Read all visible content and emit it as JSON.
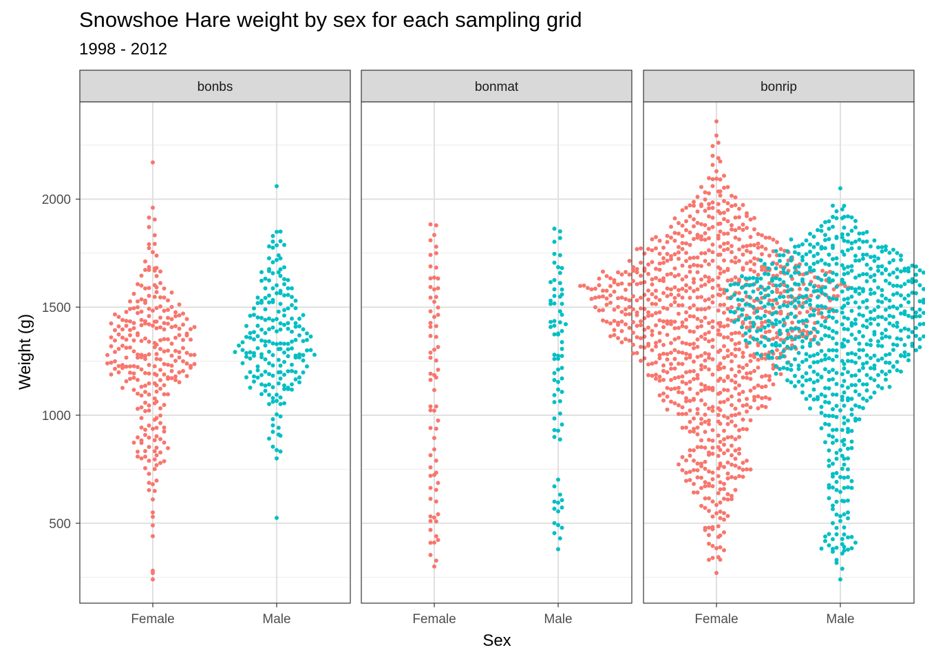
{
  "chart_data": {
    "type": "scatter",
    "subtype": "beeswarm",
    "title": "Snowshoe Hare weight by sex for each sampling grid",
    "subtitle": "1998 - 2012",
    "xlabel": "Sex",
    "ylabel": "Weight (g)",
    "ylim": [
      130,
      2450
    ],
    "y_ticks": [
      500,
      1000,
      1500,
      2000
    ],
    "y_tick_labels": [
      "500",
      "1000",
      "1500",
      "2000"
    ],
    "categories": [
      "Female",
      "Male"
    ],
    "grid": true,
    "legend": "none",
    "colors": {
      "Female": "#F8766D",
      "Male": "#00BFC4"
    },
    "panels": [
      {
        "name": "bonbs",
        "series": [
          {
            "category": "Female",
            "min": 240,
            "max": 2170,
            "outliers": [
              2170,
              280,
              270,
              240,
              440,
              490,
              530,
              550,
              610
            ],
            "bins": [
              [
                650,
                2
              ],
              [
                700,
                3
              ],
              [
                750,
                4
              ],
              [
                800,
                8
              ],
              [
                850,
                10
              ],
              [
                900,
                8
              ],
              [
                950,
                7
              ],
              [
                1000,
                6
              ],
              [
                1050,
                8
              ],
              [
                1100,
                10
              ],
              [
                1150,
                16
              ],
              [
                1200,
                22
              ],
              [
                1250,
                24
              ],
              [
                1300,
                24
              ],
              [
                1350,
                22
              ],
              [
                1400,
                23
              ],
              [
                1450,
                20
              ],
              [
                1500,
                15
              ],
              [
                1550,
                12
              ],
              [
                1600,
                8
              ],
              [
                1650,
                6
              ],
              [
                1700,
                4
              ],
              [
                1750,
                3
              ],
              [
                1800,
                2
              ],
              [
                1850,
                2
              ],
              [
                1900,
                2
              ],
              [
                1950,
                1
              ]
            ]
          },
          {
            "category": "Male",
            "min": 525,
            "max": 2060,
            "outliers": [
              525,
              2060,
              800
            ],
            "bins": [
              [
                850,
                3
              ],
              [
                900,
                4
              ],
              [
                950,
                2
              ],
              [
                1000,
                3
              ],
              [
                1050,
                5
              ],
              [
                1100,
                9
              ],
              [
                1150,
                14
              ],
              [
                1200,
                16
              ],
              [
                1250,
                18
              ],
              [
                1300,
                22
              ],
              [
                1350,
                19
              ],
              [
                1400,
                17
              ],
              [
                1450,
                15
              ],
              [
                1500,
                12
              ],
              [
                1550,
                11
              ],
              [
                1600,
                9
              ],
              [
                1650,
                8
              ],
              [
                1700,
                5
              ],
              [
                1750,
                4
              ],
              [
                1800,
                5
              ],
              [
                1850,
                3
              ]
            ]
          }
        ]
      },
      {
        "name": "bonmat",
        "series": [
          {
            "category": "Female",
            "min": 300,
            "max": 1930,
            "outliers": [
              300
            ],
            "bins": [
              [
                350,
                2
              ],
              [
                400,
                3
              ],
              [
                450,
                2
              ],
              [
                500,
                2
              ],
              [
                550,
                3
              ],
              [
                600,
                2
              ],
              [
                650,
                2
              ],
              [
                700,
                3
              ],
              [
                750,
                2
              ],
              [
                800,
                2
              ],
              [
                850,
                1
              ],
              [
                900,
                1
              ],
              [
                950,
                2
              ],
              [
                1000,
                3
              ],
              [
                1050,
                2
              ],
              [
                1100,
                1
              ],
              [
                1150,
                2
              ],
              [
                1200,
                3
              ],
              [
                1250,
                2
              ],
              [
                1300,
                3
              ],
              [
                1350,
                2
              ],
              [
                1400,
                2
              ],
              [
                1450,
                3
              ],
              [
                1500,
                3
              ],
              [
                1550,
                2
              ],
              [
                1600,
                3
              ],
              [
                1650,
                3
              ],
              [
                1700,
                2
              ],
              [
                1750,
                2
              ],
              [
                1800,
                2
              ],
              [
                1850,
                1
              ],
              [
                1900,
                2
              ]
            ]
          },
          {
            "category": "Male",
            "min": 380,
            "max": 1850,
            "outliers": [
              380
            ],
            "bins": [
              [
                450,
                2
              ],
              [
                500,
                3
              ],
              [
                550,
                3
              ],
              [
                600,
                3
              ],
              [
                650,
                2
              ],
              [
                700,
                1
              ],
              [
                900,
                2
              ],
              [
                950,
                3
              ],
              [
                1000,
                2
              ],
              [
                1050,
                2
              ],
              [
                1100,
                3
              ],
              [
                1150,
                3
              ],
              [
                1200,
                3
              ],
              [
                1250,
                3
              ],
              [
                1300,
                3
              ],
              [
                1350,
                3
              ],
              [
                1400,
                5
              ],
              [
                1450,
                4
              ],
              [
                1500,
                4
              ],
              [
                1550,
                4
              ],
              [
                1600,
                4
              ],
              [
                1650,
                2
              ],
              [
                1700,
                3
              ],
              [
                1750,
                2
              ],
              [
                1800,
                2
              ],
              [
                1850,
                2
              ]
            ]
          }
        ]
      },
      {
        "name": "bonrip",
        "series": [
          {
            "category": "Female",
            "min": 270,
            "max": 2360,
            "outliers": [
              270,
              2360
            ],
            "bins": [
              [
                350,
                4
              ],
              [
                400,
                5
              ],
              [
                450,
                6
              ],
              [
                500,
                6
              ],
              [
                550,
                7
              ],
              [
                600,
                9
              ],
              [
                650,
                12
              ],
              [
                700,
                16
              ],
              [
                750,
                20
              ],
              [
                800,
                18
              ],
              [
                850,
                14
              ],
              [
                900,
                14
              ],
              [
                950,
                18
              ],
              [
                1000,
                20
              ],
              [
                1050,
                28
              ],
              [
                1100,
                30
              ],
              [
                1150,
                32
              ],
              [
                1200,
                36
              ],
              [
                1250,
                40
              ],
              [
                1300,
                44
              ],
              [
                1350,
                56
              ],
              [
                1400,
                54
              ],
              [
                1450,
                60
              ],
              [
                1500,
                64
              ],
              [
                1550,
                66
              ],
              [
                1600,
                72
              ],
              [
                1650,
                62
              ],
              [
                1700,
                46
              ],
              [
                1750,
                42
              ],
              [
                1800,
                34
              ],
              [
                1850,
                26
              ],
              [
                1900,
                22
              ],
              [
                1950,
                18
              ],
              [
                2000,
                12
              ],
              [
                2050,
                8
              ],
              [
                2100,
                5
              ],
              [
                2150,
                3
              ],
              [
                2200,
                2
              ],
              [
                2250,
                2
              ],
              [
                2300,
                1
              ]
            ]
          },
          {
            "category": "Male",
            "min": 240,
            "max": 2050,
            "outliers": [
              240,
              2050
            ],
            "bins": [
              [
                300,
                2
              ],
              [
                350,
                4
              ],
              [
                400,
                10
              ],
              [
                450,
                8
              ],
              [
                500,
                5
              ],
              [
                550,
                5
              ],
              [
                600,
                6
              ],
              [
                650,
                7
              ],
              [
                700,
                7
              ],
              [
                750,
                6
              ],
              [
                800,
                6
              ],
              [
                850,
                7
              ],
              [
                900,
                8
              ],
              [
                950,
                10
              ],
              [
                1000,
                11
              ],
              [
                1050,
                16
              ],
              [
                1100,
                20
              ],
              [
                1150,
                28
              ],
              [
                1200,
                34
              ],
              [
                1250,
                38
              ],
              [
                1300,
                44
              ],
              [
                1350,
                50
              ],
              [
                1400,
                52
              ],
              [
                1450,
                56
              ],
              [
                1500,
                58
              ],
              [
                1550,
                58
              ],
              [
                1600,
                60
              ],
              [
                1650,
                52
              ],
              [
                1700,
                42
              ],
              [
                1750,
                34
              ],
              [
                1800,
                26
              ],
              [
                1850,
                16
              ],
              [
                1900,
                10
              ],
              [
                1950,
                4
              ]
            ]
          }
        ]
      }
    ]
  }
}
